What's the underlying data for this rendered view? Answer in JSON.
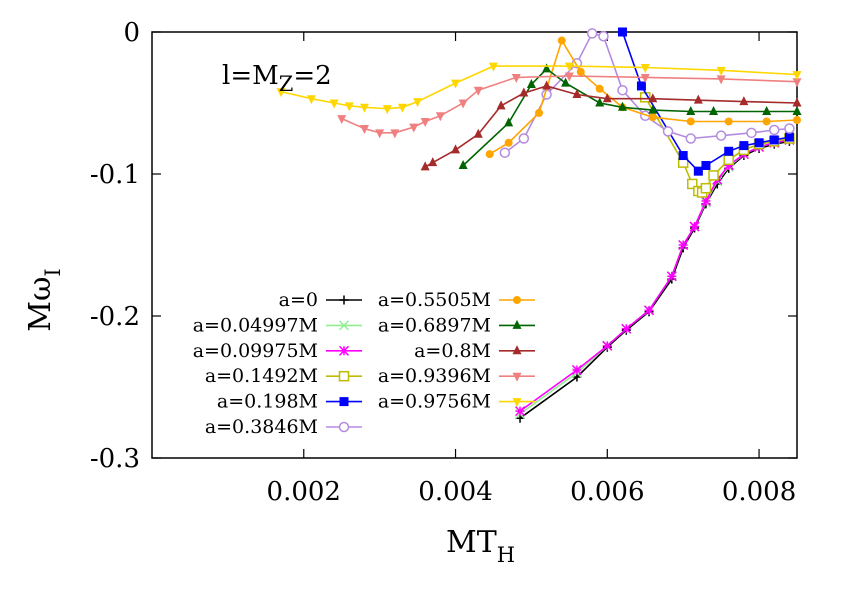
{
  "chart_data": {
    "type": "line",
    "title": "",
    "xlabel": "MT",
    "xlabel_sub": "H",
    "ylabel": "Mω",
    "ylabel_sub": "I",
    "annotation": "l=M",
    "annotation_sub": "Z",
    "annotation_tail": "=2",
    "xlim": [
      0,
      0.0085
    ],
    "ylim": [
      -0.3,
      0
    ],
    "xticks": [
      0.002,
      0.004,
      0.006,
      0.008
    ],
    "xtick_labels": [
      "0.002",
      "0.004",
      "0.006",
      "0.008"
    ],
    "yticks": [
      -0.3,
      -0.2,
      -0.1,
      0
    ],
    "ytick_labels": [
      "-0.3",
      "-0.2",
      "-0.1",
      "0"
    ],
    "grid": false,
    "legend_position": "bottom-center",
    "series": [
      {
        "name": "a=0",
        "color": "#000000",
        "marker": "plus",
        "x": [
          0.00485,
          0.0056,
          0.006,
          0.00625,
          0.00655,
          0.00685,
          0.007,
          0.00715,
          0.0073,
          0.00745,
          0.0076,
          0.0078,
          0.008,
          0.0082,
          0.0084
        ],
        "y": [
          -0.272,
          -0.243,
          -0.222,
          -0.21,
          -0.197,
          -0.174,
          -0.152,
          -0.138,
          -0.121,
          -0.107,
          -0.096,
          -0.087,
          -0.082,
          -0.079,
          -0.077
        ]
      },
      {
        "name": "a=0.04997M",
        "color": "#90ee90",
        "marker": "cross",
        "x": [
          0.00485,
          0.0056,
          0.006,
          0.00625,
          0.00655,
          0.00685,
          0.007,
          0.00715,
          0.0073,
          0.00745,
          0.0076,
          0.0078,
          0.008,
          0.0082,
          0.0084
        ],
        "y": [
          -0.269,
          -0.24,
          -0.221,
          -0.209,
          -0.196,
          -0.172,
          -0.15,
          -0.137,
          -0.12,
          -0.105,
          -0.095,
          -0.086,
          -0.081,
          -0.078,
          -0.076
        ]
      },
      {
        "name": "a=0.09975M",
        "color": "#ff00ff",
        "marker": "star",
        "x": [
          0.00485,
          0.0056,
          0.006,
          0.00625,
          0.00655,
          0.00685,
          0.007,
          0.00715,
          0.0073,
          0.00745,
          0.0076,
          0.0078,
          0.008,
          0.0082,
          0.0084
        ],
        "y": [
          -0.267,
          -0.238,
          -0.221,
          -0.209,
          -0.196,
          -0.172,
          -0.15,
          -0.137,
          -0.119,
          -0.104,
          -0.094,
          -0.086,
          -0.081,
          -0.078,
          -0.076
        ]
      },
      {
        "name": "a=0.1492M",
        "color": "#bdbd00",
        "marker": "square-open",
        "x": [
          0.0065,
          0.007,
          0.00712,
          0.0072,
          0.00725,
          0.0073,
          0.0074,
          0.0076,
          0.0078,
          0.008,
          0.0082,
          0.0084
        ],
        "y": [
          -0.046,
          -0.092,
          -0.107,
          -0.112,
          -0.113,
          -0.11,
          -0.101,
          -0.09,
          -0.083,
          -0.079,
          -0.077,
          -0.075
        ]
      },
      {
        "name": "a=0.198M",
        "color": "#0000ff",
        "marker": "square-filled",
        "x": [
          0.0062,
          0.00645,
          0.007,
          0.0072,
          0.0073,
          0.0076,
          0.0078,
          0.008,
          0.0082,
          0.0084
        ],
        "y": [
          0.0,
          -0.038,
          -0.087,
          -0.098,
          -0.094,
          -0.084,
          -0.08,
          -0.078,
          -0.076,
          -0.074
        ]
      },
      {
        "name": "a=0.3846M",
        "color": "#b48be0",
        "marker": "circle-open",
        "x": [
          0.00465,
          0.0049,
          0.0052,
          0.0056,
          0.0058,
          0.00595,
          0.0062,
          0.0065,
          0.0068,
          0.0071,
          0.0075,
          0.0079,
          0.0082,
          0.0084
        ],
        "y": [
          -0.085,
          -0.075,
          -0.044,
          -0.022,
          -0.001,
          -0.003,
          -0.041,
          -0.059,
          -0.07,
          -0.075,
          -0.073,
          -0.071,
          -0.069,
          -0.068
        ]
      },
      {
        "name": "a=0.5505M",
        "color": "#ffa500",
        "marker": "circle-filled",
        "x": [
          0.00445,
          0.0047,
          0.0051,
          0.0054,
          0.00565,
          0.0059,
          0.0062,
          0.0066,
          0.0071,
          0.0076,
          0.0081,
          0.0085
        ],
        "y": [
          -0.086,
          -0.078,
          -0.057,
          -0.006,
          -0.028,
          -0.04,
          -0.053,
          -0.06,
          -0.063,
          -0.063,
          -0.063,
          -0.062
        ]
      },
      {
        "name": "a=0.6897M",
        "color": "#006400",
        "marker": "triangle-filled",
        "x": [
          0.0041,
          0.0047,
          0.005,
          0.0052,
          0.00545,
          0.0059,
          0.0062,
          0.0066,
          0.0071,
          0.0074,
          0.0081,
          0.0085
        ],
        "y": [
          -0.094,
          -0.064,
          -0.037,
          -0.026,
          -0.036,
          -0.05,
          -0.053,
          -0.055,
          -0.056,
          -0.056,
          -0.056,
          -0.056
        ]
      },
      {
        "name": "a=0.8M",
        "color": "#a52a2a",
        "marker": "triangle-filled",
        "x": [
          0.0036,
          0.0037,
          0.004,
          0.0043,
          0.0046,
          0.0049,
          0.0052,
          0.0056,
          0.006,
          0.0066,
          0.0072,
          0.0078,
          0.0085
        ],
        "y": [
          -0.095,
          -0.092,
          -0.083,
          -0.072,
          -0.052,
          -0.043,
          -0.038,
          -0.044,
          -0.047,
          -0.047,
          -0.048,
          -0.049,
          -0.05
        ]
      },
      {
        "name": "a=0.9396M",
        "color": "#f08080",
        "marker": "triangle-down",
        "x": [
          0.0025,
          0.0028,
          0.003,
          0.0032,
          0.00345,
          0.0036,
          0.0038,
          0.0041,
          0.0043,
          0.0048,
          0.0055,
          0.0065,
          0.0075,
          0.0085
        ],
        "y": [
          -0.061,
          -0.068,
          -0.071,
          -0.071,
          -0.067,
          -0.063,
          -0.059,
          -0.05,
          -0.041,
          -0.032,
          -0.031,
          -0.032,
          -0.033,
          -0.035
        ]
      },
      {
        "name": "a=0.9756M",
        "color": "#ffd700",
        "marker": "triangle-down",
        "x": [
          0.0017,
          0.0021,
          0.0024,
          0.0026,
          0.0028,
          0.0031,
          0.0033,
          0.0035,
          0.004,
          0.0045,
          0.0055,
          0.0065,
          0.0075,
          0.0085
        ],
        "y": [
          -0.042,
          -0.047,
          -0.05,
          -0.052,
          -0.053,
          -0.054,
          -0.053,
          -0.049,
          -0.036,
          -0.024,
          -0.024,
          -0.025,
          -0.027,
          -0.03
        ]
      }
    ]
  }
}
